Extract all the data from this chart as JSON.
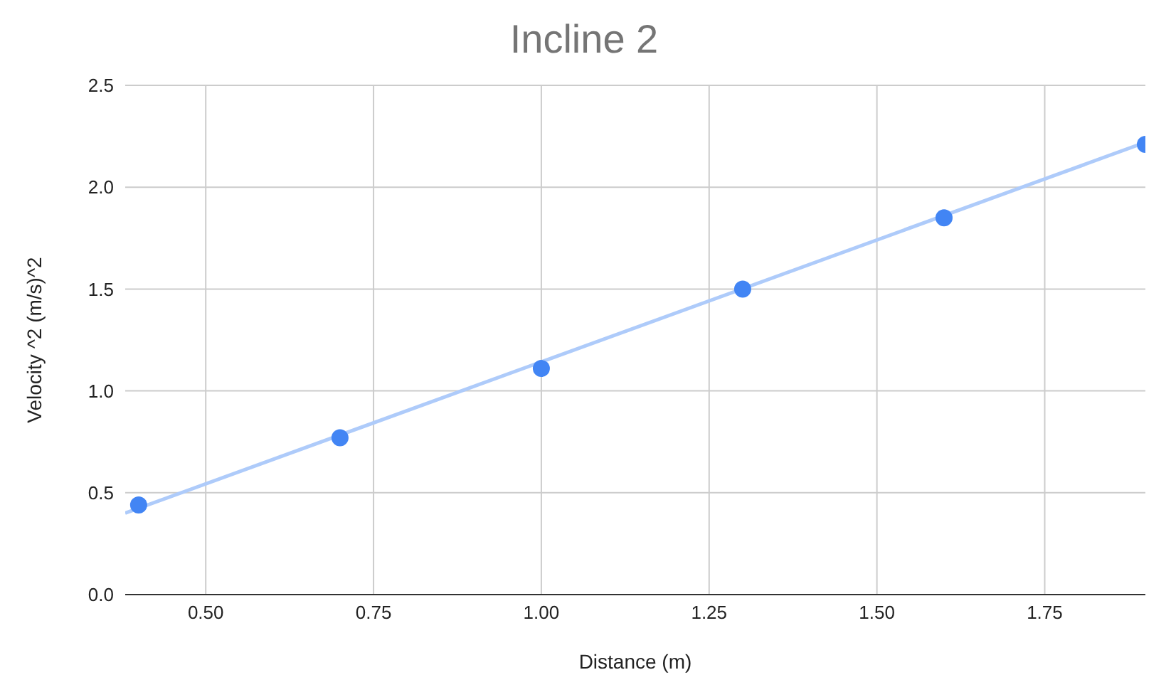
{
  "chart_data": {
    "type": "scatter",
    "title": "Incline 2",
    "xlabel": "Distance (m)",
    "ylabel": "Velocity ^2 (m/s)^2",
    "x": [
      0.4,
      0.7,
      1.0,
      1.3,
      1.6,
      1.9
    ],
    "series": [
      {
        "color": "#4285f4",
        "values": [
          0.44,
          0.77,
          1.11,
          1.5,
          1.85,
          2.21
        ]
      },
      {
        "type": "line",
        "marker": "none",
        "color": "#aecbfa",
        "x": [
          0.38,
          1.9
        ],
        "values": [
          0.4,
          2.22
        ]
      }
    ],
    "xlim": [
      0.38,
      1.9
    ],
    "xticks": [
      {
        "value": 0.5,
        "label": "0.50"
      },
      {
        "value": 0.75,
        "label": "0.75"
      },
      {
        "value": 1.0,
        "label": "1.00"
      },
      {
        "value": 1.25,
        "label": "1.25"
      },
      {
        "value": 1.5,
        "label": "1.50"
      },
      {
        "value": 1.75,
        "label": "1.75"
      }
    ],
    "ylim": [
      0,
      2.5
    ],
    "yticks": [
      {
        "value": 0,
        "label": "0.0"
      },
      {
        "value": 0.5,
        "label": "0.5"
      },
      {
        "value": 1,
        "label": "1.0"
      },
      {
        "value": 1.5,
        "label": "1.5"
      },
      {
        "value": 2,
        "label": "2.0"
      },
      {
        "value": 2.5,
        "label": "2.5"
      }
    ],
    "grid": true,
    "marker": "circle"
  }
}
